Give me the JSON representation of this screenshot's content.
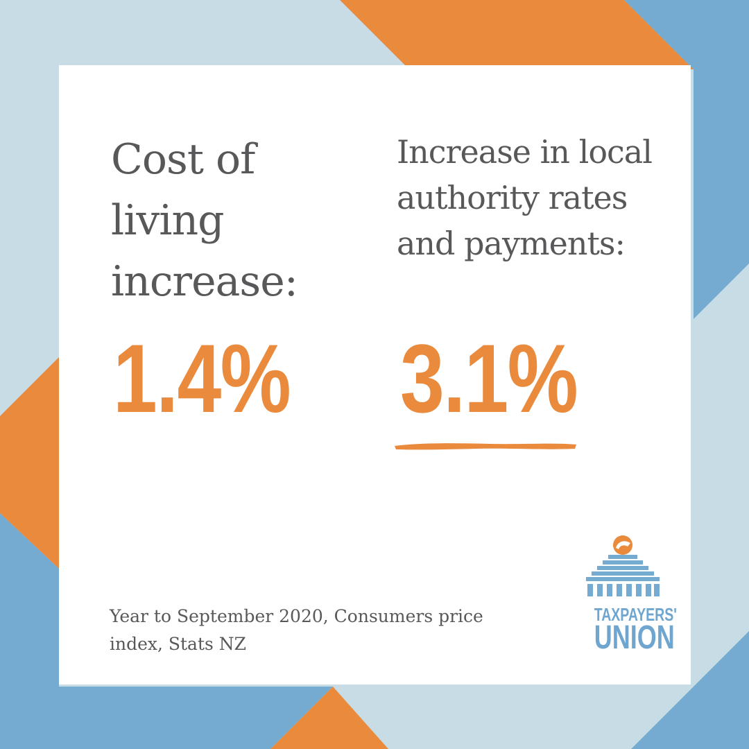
{
  "colors": {
    "orange": "#e98a3c",
    "light_blue": "#c7dce4",
    "mid_blue": "#76abd1",
    "text_grey": "#58585a"
  },
  "left_stat": {
    "label": "Cost of living increase:",
    "value": "1.4%"
  },
  "right_stat": {
    "label": "Increase in local authority rates and payments:",
    "value": "3.1%"
  },
  "source": "Year to September 2020, Consumers price index, Stats NZ",
  "logo": {
    "line1": "TAXPAYERS'",
    "line2": "UNION"
  }
}
